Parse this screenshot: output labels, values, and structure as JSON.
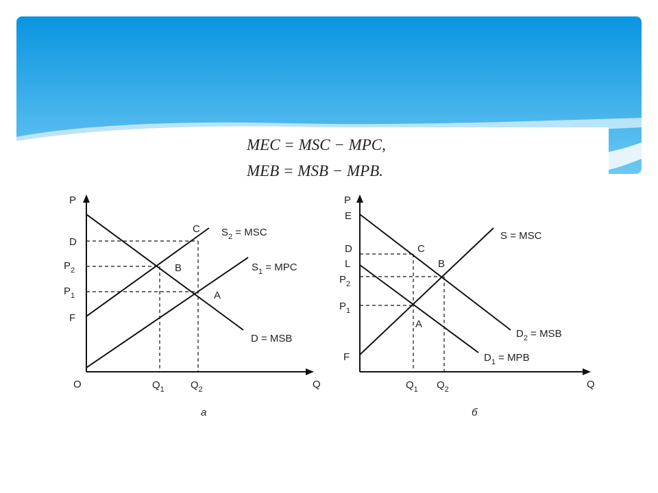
{
  "formulas": [
    "MEC = MSC − MPC,",
    "MEB = MSB − MPB."
  ],
  "panels": [
    {
      "caption": "а",
      "axis_labels": [
        {
          "text": "P"
        },
        {
          "text": "Q"
        },
        {
          "text": "O"
        }
      ],
      "price_labels": [
        {
          "text": "D"
        },
        {
          "text": "P",
          "sub": "2"
        },
        {
          "text": "P",
          "sub": "1"
        },
        {
          "text": "F"
        }
      ],
      "quantity_labels": [
        {
          "text": "Q",
          "sub": "1"
        },
        {
          "text": "Q",
          "sub": "2"
        }
      ],
      "point_labels": [
        {
          "text": "C"
        },
        {
          "text": "B"
        },
        {
          "text": "A"
        }
      ],
      "curve_labels": [
        {
          "text": "S",
          "sub": "2",
          "rest": " = MSC"
        },
        {
          "text": "S",
          "sub": "1",
          "rest": " = MPC"
        },
        {
          "text": "D = MSB"
        }
      ]
    },
    {
      "caption": "б",
      "axis_labels": [
        {
          "text": "P"
        },
        {
          "text": "Q"
        }
      ],
      "price_labels": [
        {
          "text": "E"
        },
        {
          "text": "D"
        },
        {
          "text": "L"
        },
        {
          "text": "P",
          "sub": "2"
        },
        {
          "text": "P",
          "sub": "1"
        },
        {
          "text": "F"
        }
      ],
      "quantity_labels": [
        {
          "text": "Q",
          "sub": "1"
        },
        {
          "text": "Q",
          "sub": "2"
        }
      ],
      "point_labels": [
        {
          "text": "C"
        },
        {
          "text": "B"
        },
        {
          "text": "A"
        }
      ],
      "curve_labels": [
        {
          "text": "S = MSC"
        },
        {
          "text": "D",
          "sub": "2",
          "rest": " = MSB"
        },
        {
          "text": "D",
          "sub": "1",
          "rest": " = MPB"
        }
      ]
    }
  ]
}
